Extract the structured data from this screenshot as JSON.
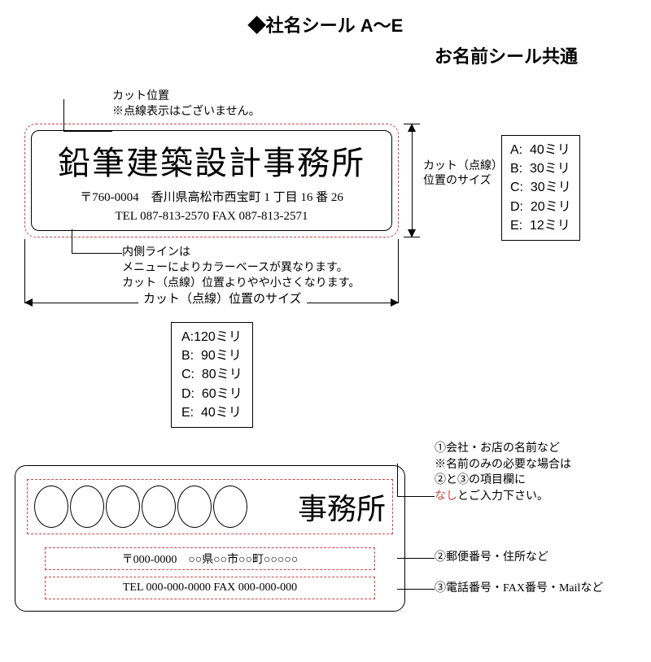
{
  "title": "◆社名シール A～E",
  "subtitle": "お名前シール共通",
  "notes": {
    "cut_position_line1": "カット位置",
    "cut_position_line2": "※点線表示はございません。",
    "inner_line_line1": "内側ラインは",
    "inner_line_line2": "メニューによりカラーベースが異なります。",
    "inner_line_line3": "カット（点線）位置よりやや小さくなります。"
  },
  "label_sample": {
    "company_name": "鉛筆建築設計事務所",
    "address": "〒760-0004　香川県高松市西宝町 1 丁目 16 番 26",
    "telfax": "TEL 087-813-2570  FAX 087-813-2571"
  },
  "dim_v": {
    "label_line1": "カット（点線）",
    "label_line2": "位置のサイズ"
  },
  "dim_h_label": "カット（点線）位置のサイズ",
  "sizes_height": "A:  40ミリ\nB:  30ミリ\nC:  30ミリ\nD:  20ミリ\nE:  12ミリ",
  "sizes_width": "A:120ミリ\nB:  90ミリ\nC:  80ミリ\nD:  60ミリ\nE:  40ミリ",
  "template": {
    "office_suffix": "事務所",
    "field2": "〒000-0000　○○県○○市○○町○○○○○",
    "field3": "TEL 000-000-0000  FAX 000-000-000"
  },
  "callouts": {
    "c1_line1": "①会社・お店の名前など",
    "c1_line2": "※名前のみの必要な場合は",
    "c1_line3_a": "②と③の項目欄に",
    "c1_line3_red": "なし",
    "c1_line3_b": "とご入力下さい。",
    "c2": "②郵便番号・住所など",
    "c3": "③電話番号・FAX番号・Mailなど"
  },
  "colors": {
    "dashed": "#c9494a",
    "text": "#000000",
    "bg": "#ffffff"
  }
}
